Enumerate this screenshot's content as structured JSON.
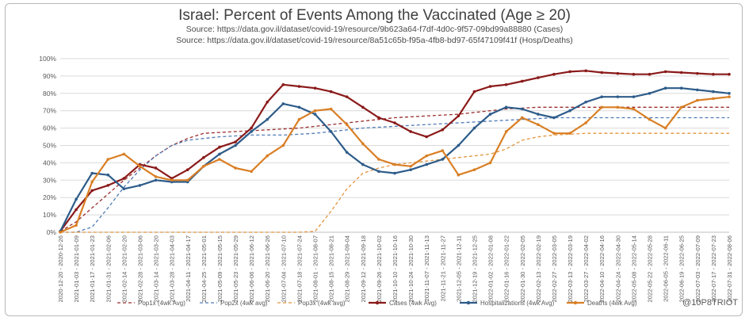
{
  "chart_data": {
    "type": "line",
    "title": "Israel: Percent of Events Among the Vaccinated (Age ≥ 20)",
    "source_cases": "Source: https://data.gov.il/dataset/covid-19/resource/9b623a64-f7df-4d0c-9f57-09bd99a88880 (Cases)",
    "source_hosp": "Source: https://data.gov.il/dataset/covid-19/resource/8a51c65b-f95a-4fb8-bd97-65f47109f41f (Hosp/Deaths)",
    "credit": "@10P8TRIOT",
    "ylim": [
      0,
      100
    ],
    "yticks": [
      "0%",
      "10%",
      "20%",
      "30%",
      "40%",
      "50%",
      "60%",
      "70%",
      "80%",
      "90%",
      "100%"
    ],
    "categories": [
      "2020-12-20 - 2020-12-26",
      "2021-01-03 - 2021-01-09",
      "2021-01-17 - 2021-01-23",
      "2021-01-31 - 2021-02-06",
      "2021-02-14 - 2021-02-20",
      "2021-02-28 - 2021-03-06",
      "2021-03-14 - 2021-03-20",
      "2021-03-28 - 2021-04-03",
      "2021-04-11 - 2021-04-17",
      "2021-04-25 - 2021-05-01",
      "2021-05-09 - 2021-05-15",
      "2021-05-23 - 2021-05-29",
      "2021-06-06 - 2021-06-12",
      "2021-06-20 - 2021-06-26",
      "2021-07-04 - 2021-07-10",
      "2021-07-18 - 2021-07-24",
      "2021-08-01 - 2021-08-07",
      "2021-08-15 - 2021-08-21",
      "2021-08-29 - 2021-09-04",
      "2021-09-12 - 2021-09-18",
      "2021-09-26 - 2021-10-02",
      "2021-10-10 - 2021-10-16",
      "2021-10-24 - 2021-10-30",
      "2021-11-07 - 2021-11-13",
      "2021-11-21 - 2021-11-27",
      "2021-12-05 - 2021-12-11",
      "2021-12-19 - 2021-12-25",
      "2022-01-02 - 2022-01-08",
      "2022-01-16 - 2022-01-22",
      "2022-01-30 - 2022-02-05",
      "2022-02-13 - 2022-02-19",
      "2022-02-27 - 2022-03-05",
      "2022-03-13 - 2022-03-19",
      "2022-03-27 - 2022-04-02",
      "2022-04-10 - 2022-04-16",
      "2022-04-24 - 2022-04-30",
      "2022-05-08 - 2022-05-14",
      "2022-05-22 - 2022-05-28",
      "2022-06-05 - 2022-06-11",
      "2022-06-19 - 2022-06-25",
      "2022-07-03 - 2022-07-09",
      "2022-07-17 - 2022-07-23",
      "2022-07-31 - 2022-08-06"
    ],
    "series": [
      {
        "name": "Pop1x (4wk Avg)",
        "color": "#9b2d2d",
        "style": "dashed",
        "values": [
          0.5,
          6,
          14,
          22,
          30,
          37,
          44,
          50,
          54,
          57,
          57.5,
          58,
          58.5,
          59,
          59.5,
          60,
          61,
          62,
          63,
          64,
          65,
          66,
          66.5,
          67,
          67.5,
          68,
          69,
          70,
          71,
          71.5,
          72,
          72,
          72,
          72,
          72,
          72,
          72,
          72,
          72,
          72,
          72,
          72,
          72
        ]
      },
      {
        "name": "Pop2x (4wk avg)",
        "color": "#4f7ab5",
        "style": "dashed",
        "values": [
          0,
          0,
          3,
          14,
          26,
          36,
          44,
          50,
          53,
          54,
          55,
          55.5,
          56,
          56,
          56,
          56.5,
          57,
          58,
          59,
          60,
          60.5,
          61,
          61.5,
          62,
          62.5,
          63,
          63.5,
          64,
          64.5,
          65,
          65.5,
          66,
          66,
          66,
          66,
          66,
          66,
          66,
          66,
          66,
          66,
          66,
          66
        ]
      },
      {
        "name": "Pop3x (4wk avg)",
        "color": "#e2953e",
        "style": "dashed",
        "values": [
          0,
          0,
          0,
          0,
          0,
          0,
          0,
          0,
          0,
          0,
          0,
          0,
          0,
          0,
          0,
          0,
          0.5,
          12,
          25,
          34,
          37,
          39,
          40,
          41,
          42,
          43,
          44,
          45,
          48,
          53,
          55,
          56,
          56.5,
          57,
          57,
          57,
          57,
          57,
          57,
          57,
          57,
          57,
          57
        ]
      },
      {
        "name": "Cases (4wk Avg)",
        "color": "#8b1a1a",
        "style": "solid",
        "values": [
          0.5,
          13,
          24,
          27,
          31,
          39,
          37,
          31,
          36,
          43,
          49,
          52,
          60,
          75,
          85,
          84,
          83,
          81,
          78,
          72,
          66,
          63,
          58,
          55,
          59,
          67,
          81,
          84,
          85,
          87,
          89,
          91,
          92.5,
          93,
          92,
          91.5,
          91,
          91,
          92.5,
          92,
          91.5,
          91,
          91
        ]
      },
      {
        "name": "Hospitalizations (4wk Avg)",
        "color": "#2e5c8a",
        "style": "solid",
        "values": [
          0.5,
          19,
          34,
          33,
          25,
          27,
          30,
          29,
          29,
          38,
          45,
          50,
          58,
          65,
          74,
          72,
          68,
          58,
          46,
          39,
          35,
          34,
          36,
          39,
          42,
          50,
          60,
          68,
          72,
          71,
          68,
          66,
          70,
          75,
          78,
          78,
          78,
          80,
          83,
          83,
          82,
          81,
          80
        ]
      },
      {
        "name": "Deaths (4wk Avg)",
        "color": "#d97f25",
        "style": "solid",
        "values": [
          0,
          4,
          29,
          42,
          45,
          38,
          32,
          30,
          30,
          38,
          42,
          37,
          35,
          44,
          50,
          65,
          70,
          71,
          62,
          51,
          42,
          39,
          38,
          44,
          47,
          33,
          36,
          40,
          58,
          66,
          62,
          57,
          57,
          63,
          72,
          72,
          71,
          65,
          60,
          72,
          76,
          77,
          78
        ]
      }
    ]
  }
}
